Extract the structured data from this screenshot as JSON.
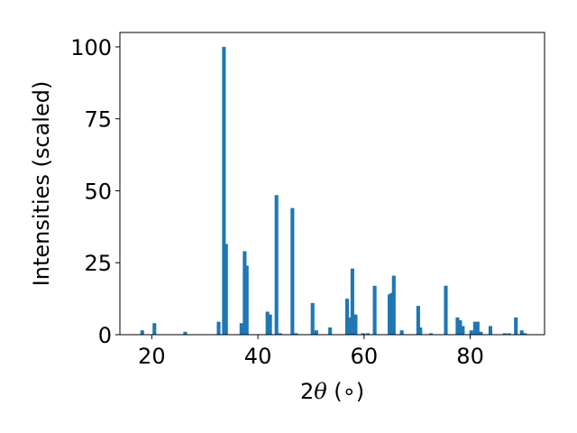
{
  "chart_data": {
    "type": "bar",
    "title": "",
    "xlabel": {
      "prefix": "2",
      "symbol": "θ",
      "suffix": " (∘)"
    },
    "ylabel": "Intensities (scaled)",
    "xlim": [
      14.0,
      94.0
    ],
    "ylim": [
      0,
      105
    ],
    "xticks": [
      20,
      40,
      60,
      80
    ],
    "yticks": [
      0,
      25,
      50,
      75,
      100
    ],
    "bar_width": 0.7,
    "grid": false,
    "legend": false,
    "color": "#1f77b4",
    "x": [
      18.2,
      20.5,
      26.3,
      32.6,
      33.6,
      34.0,
      36.9,
      37.5,
      37.9,
      41.8,
      42.3,
      43.5,
      44.2,
      46.5,
      47.2,
      50.3,
      51.0,
      53.6,
      56.8,
      57.2,
      57.8,
      58.4,
      59.8,
      60.7,
      62.0,
      64.8,
      65.2,
      65.6,
      67.1,
      70.2,
      70.6,
      72.6,
      75.4,
      77.6,
      78.1,
      78.6,
      80.2,
      80.9,
      81.4,
      82.0,
      83.8,
      86.5,
      87.3,
      88.6,
      89.7,
      90.3
    ],
    "values": [
      1.5,
      4,
      1,
      4.5,
      100,
      31.5,
      4,
      29,
      24,
      8,
      7,
      48.5,
      0.5,
      44,
      0.5,
      11,
      1.5,
      2.5,
      12.5,
      6,
      23,
      7,
      0.5,
      0.5,
      17,
      14,
      14.5,
      20.5,
      1.5,
      10,
      2.5,
      0.5,
      17,
      6,
      5,
      3,
      1.5,
      4.5,
      4.5,
      1,
      3,
      0.5,
      0.5,
      6,
      1.5,
      0.5
    ]
  }
}
